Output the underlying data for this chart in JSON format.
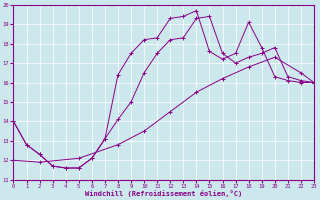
{
  "xlabel": "Windchill (Refroidissement éolien,°C)",
  "xlim": [
    0,
    23
  ],
  "ylim": [
    11,
    20
  ],
  "xticks": [
    0,
    1,
    2,
    3,
    4,
    5,
    6,
    7,
    8,
    9,
    10,
    11,
    12,
    13,
    14,
    15,
    16,
    17,
    18,
    19,
    20,
    21,
    22,
    23
  ],
  "yticks": [
    11,
    12,
    13,
    14,
    15,
    16,
    17,
    18,
    19,
    20
  ],
  "bg_color": "#cce8ec",
  "line_color": "#880088",
  "line1_x": [
    0,
    1,
    2,
    3,
    4,
    5,
    6,
    7,
    8,
    9,
    10,
    11,
    12,
    13,
    14,
    15,
    16,
    17,
    18,
    19,
    20,
    21,
    22,
    23
  ],
  "line1_y": [
    14.0,
    12.8,
    12.3,
    11.7,
    11.6,
    11.6,
    12.1,
    13.1,
    16.4,
    17.5,
    18.2,
    18.3,
    19.3,
    19.4,
    19.7,
    17.6,
    17.2,
    17.5,
    19.1,
    17.8,
    16.3,
    16.1,
    16.0,
    16.0
  ],
  "line2_x": [
    0,
    1,
    2,
    3,
    4,
    5,
    6,
    7,
    8,
    9,
    10,
    11,
    12,
    13,
    14,
    15,
    16,
    17,
    18,
    19,
    20,
    21,
    22,
    23
  ],
  "line2_y": [
    14.0,
    12.8,
    12.3,
    11.7,
    11.6,
    11.6,
    12.1,
    13.1,
    14.1,
    15.0,
    16.5,
    17.5,
    18.2,
    18.3,
    19.3,
    19.4,
    17.5,
    17.0,
    17.3,
    17.5,
    17.8,
    16.3,
    16.1,
    16.0
  ],
  "line3_x": [
    0,
    2,
    5,
    8,
    10,
    12,
    14,
    16,
    18,
    20,
    22,
    23
  ],
  "line3_y": [
    12.0,
    11.9,
    12.1,
    12.8,
    13.5,
    14.5,
    15.5,
    16.2,
    16.8,
    17.3,
    16.5,
    16.0
  ]
}
